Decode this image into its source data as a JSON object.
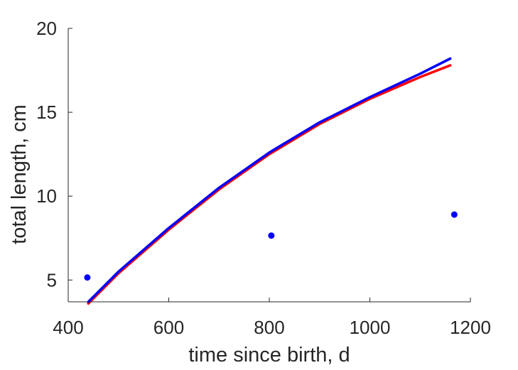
{
  "chart_data": {
    "type": "line",
    "title": "",
    "xlabel": "time since birth, d",
    "ylabel": "total length, cm",
    "xlim": [
      400,
      1200
    ],
    "ylim": [
      3.7,
      20
    ],
    "xticks": [
      400,
      600,
      800,
      1000,
      1200
    ],
    "yticks": [
      5,
      10,
      15,
      20
    ],
    "grid": false,
    "legend": "none",
    "series": [
      {
        "kind": "line",
        "color": "#0000ff",
        "x": [
          440,
          500,
          600,
          700,
          800,
          900,
          1000,
          1100,
          1160
        ],
        "y": [
          3.7,
          5.5,
          8.1,
          10.5,
          12.6,
          14.4,
          15.9,
          17.3,
          18.2
        ]
      },
      {
        "kind": "line",
        "color": "#ff0000",
        "x": [
          440,
          500,
          600,
          700,
          800,
          900,
          1000,
          1100,
          1160
        ],
        "y": [
          3.6,
          5.4,
          8.0,
          10.4,
          12.5,
          14.3,
          15.8,
          17.1,
          17.8
        ]
      },
      {
        "kind": "scatter",
        "color": "#0000ff",
        "x": [
          438,
          804,
          1168
        ],
        "y": [
          5.15,
          7.65,
          8.9
        ]
      }
    ]
  }
}
